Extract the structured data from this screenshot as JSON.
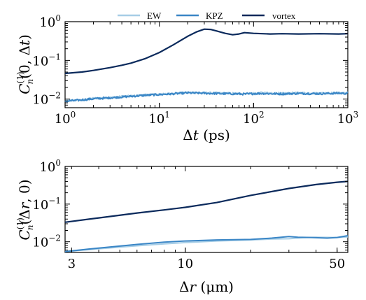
{
  "colors": {
    "EW": "#a6cde6",
    "KPZ": "#3a86c6",
    "vortex": "#0b2a5c"
  },
  "legend": [
    "EW",
    "KPZ",
    "vortex"
  ],
  "chart_data": [
    {
      "type": "line",
      "xscale": "log",
      "yscale": "log",
      "xlim": [
        1,
        1000
      ],
      "ylim": [
        0.006,
        1
      ],
      "xlabel": "Δt (ps)",
      "ylabel": "C_n^(1)(0, Δt)",
      "xticks": [
        {
          "base": "10",
          "exp": "0",
          "value": 1
        },
        {
          "base": "10",
          "exp": "1",
          "value": 10
        },
        {
          "base": "10",
          "exp": "2",
          "value": 100
        },
        {
          "base": "10",
          "exp": "3",
          "value": 1000
        }
      ],
      "yticks": [
        {
          "base": "10",
          "exp": "−2",
          "value": 0.01
        },
        {
          "base": "10",
          "exp": "−1",
          "value": 0.1
        },
        {
          "base": "10",
          "exp": "0",
          "value": 1
        }
      ],
      "series": [
        {
          "name": "EW",
          "noisy": true,
          "x": [
            1,
            1.5,
            2,
            3,
            5,
            8,
            12,
            20,
            30,
            50,
            80,
            120,
            200,
            300,
            500,
            800,
            1000
          ],
          "y": [
            0.009,
            0.0095,
            0.0105,
            0.011,
            0.012,
            0.013,
            0.0135,
            0.0148,
            0.0145,
            0.0142,
            0.0138,
            0.0145,
            0.014,
            0.0145,
            0.0142,
            0.0145,
            0.0145
          ]
        },
        {
          "name": "KPZ",
          "noisy": true,
          "x": [
            1,
            1.5,
            2,
            3,
            5,
            8,
            12,
            20,
            30,
            50,
            80,
            120,
            200,
            300,
            500,
            800,
            1000
          ],
          "y": [
            0.0088,
            0.0095,
            0.0102,
            0.0108,
            0.0118,
            0.0128,
            0.0134,
            0.0145,
            0.0142,
            0.0138,
            0.0135,
            0.014,
            0.0136,
            0.014,
            0.0138,
            0.0142,
            0.014
          ]
        },
        {
          "name": "vortex",
          "noisy": false,
          "x": [
            1,
            1.5,
            2,
            3,
            4,
            5,
            7,
            10,
            14,
            20,
            25,
            30,
            35,
            40,
            50,
            60,
            70,
            80,
            100,
            150,
            200,
            300,
            500,
            800,
            1000
          ],
          "y": [
            0.046,
            0.05,
            0.055,
            0.065,
            0.075,
            0.085,
            0.11,
            0.16,
            0.25,
            0.42,
            0.55,
            0.64,
            0.63,
            0.58,
            0.5,
            0.46,
            0.48,
            0.52,
            0.5,
            0.48,
            0.49,
            0.48,
            0.49,
            0.48,
            0.49
          ]
        }
      ]
    },
    {
      "type": "line",
      "xscale": "log",
      "yscale": "log",
      "xlim": [
        2.8,
        56
      ],
      "ylim": [
        0.0052,
        1
      ],
      "xlabel": "Δr (μm)",
      "ylabel": "C_n^(1)(Δr, 0)",
      "xticks": [
        {
          "base": "3",
          "exp": "",
          "value": 3
        },
        {
          "base": "10",
          "exp": "",
          "value": 10
        },
        {
          "base": "50",
          "exp": "",
          "value": 50
        }
      ],
      "yticks": [
        {
          "base": "10",
          "exp": "−2",
          "value": 0.01
        },
        {
          "base": "10",
          "exp": "−1",
          "value": 0.1
        },
        {
          "base": "10",
          "exp": "0",
          "value": 1
        }
      ],
      "series": [
        {
          "name": "EW",
          "noisy": false,
          "x": [
            2.8,
            4,
            6,
            8,
            10,
            14,
            20,
            25,
            30,
            35,
            40,
            50,
            56
          ],
          "y": [
            0.0055,
            0.0065,
            0.0078,
            0.0088,
            0.0095,
            0.0105,
            0.0112,
            0.0118,
            0.012,
            0.0128,
            0.0132,
            0.013,
            0.0135
          ]
        },
        {
          "name": "KPZ",
          "noisy": false,
          "x": [
            2.8,
            4,
            6,
            8,
            10,
            14,
            20,
            25,
            30,
            33,
            38,
            45,
            50,
            56
          ],
          "y": [
            0.0055,
            0.0068,
            0.0085,
            0.0098,
            0.0105,
            0.0112,
            0.0115,
            0.0125,
            0.0138,
            0.0132,
            0.013,
            0.0125,
            0.013,
            0.0145
          ]
        },
        {
          "name": "vortex",
          "noisy": false,
          "x": [
            2.8,
            4,
            6,
            8,
            10,
            14,
            20,
            30,
            40,
            50,
            56
          ],
          "y": [
            0.033,
            0.043,
            0.058,
            0.07,
            0.082,
            0.11,
            0.17,
            0.26,
            0.33,
            0.38,
            0.4
          ]
        }
      ]
    }
  ]
}
